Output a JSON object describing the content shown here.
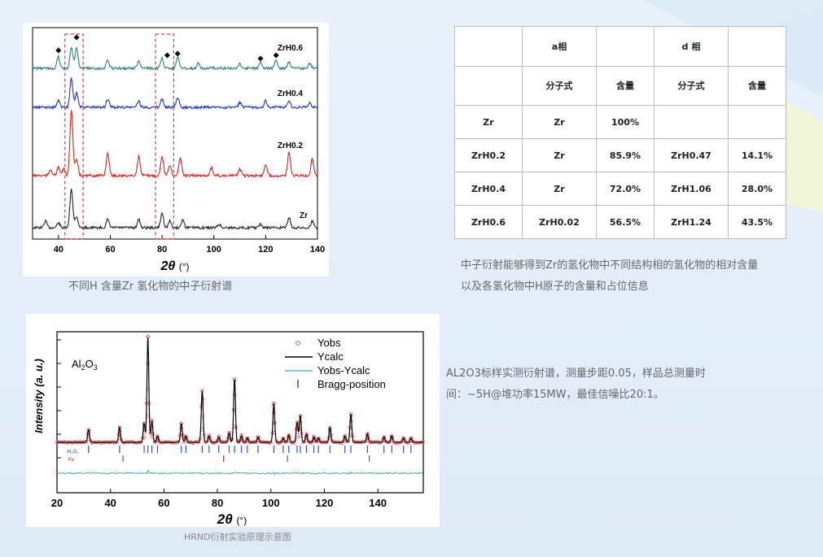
{
  "colors": {
    "zr": "#222222",
    "zrh02": "#d9231e",
    "zrh04": "#1f36c8",
    "zrh06": "#2f7d7a",
    "box": "#e03b3b",
    "obs": "#e06060",
    "calc": "#000000",
    "diff": "#3aa7a3",
    "bragg_al": "#1a3fd6",
    "bragg_fe": "#d12020"
  },
  "chart1": {
    "xlabel_main": "2θ",
    "xlabel_unit": "(°)",
    "xticks": [
      "40",
      "60",
      "80",
      "100",
      "120",
      "140"
    ],
    "xlim": [
      30,
      140
    ],
    "series_labels": [
      "ZrH0.6",
      "ZrH0.4",
      "ZrH0.2",
      "Zr"
    ],
    "caption": "不同H 含量Zr 氢化物的中子衍射谱"
  },
  "table": {
    "header1": [
      "",
      "a相",
      "",
      "d 相",
      ""
    ],
    "header2": [
      "",
      "分子式",
      "含量",
      "分子式",
      "含量"
    ],
    "rows": [
      [
        "Zr",
        "Zr",
        "100%",
        "",
        ""
      ],
      [
        "ZrH0.2",
        "Zr",
        "85.9%",
        "ZrH0.47",
        "14.1%"
      ],
      [
        "ZrH0.4",
        "Zr",
        "72.0%",
        "ZrH1.06",
        "28.0%"
      ],
      [
        "ZrH0.6",
        "ZrH0.02",
        "56.5%",
        "ZrH1.24",
        "43.5%"
      ]
    ],
    "caption_line1": "中子衍射能够得到Zr的氢化物中不同结构相的氢化物的相对含量",
    "caption_line2": "以及各氢化物中H原子的含量和占位信息"
  },
  "chart2": {
    "ylabel": "Intensity (a. u.)",
    "xlabel_main": "2θ",
    "xlabel_unit": "(°)",
    "xticks": [
      "20",
      "40",
      "60",
      "80",
      "100",
      "120",
      "140"
    ],
    "xlim": [
      20,
      157
    ],
    "material": "Al2O3",
    "legend": [
      "Yobs",
      "Ycalc",
      "Yobs-Ycalc",
      "Bragg-position"
    ],
    "phase_labels": [
      "Al2O3",
      "Fe"
    ],
    "caption": "HRND衍射实验原理示意图",
    "peaks": [
      31.8,
      43.4,
      52.6,
      54.0,
      55.5,
      57.6,
      66.5,
      68.2,
      74.3,
      76.9,
      80.5,
      84.4,
      86.4,
      89.0,
      91.2,
      95.2,
      101.1,
      104.6,
      106.7,
      109.8,
      111.0,
      113.3,
      116.1,
      117.8,
      122.1,
      127.7,
      129.9,
      136.1,
      142.3,
      145.2,
      149.6,
      152.4
    ],
    "intensities": [
      0.12,
      0.14,
      0.18,
      1.0,
      0.2,
      0.06,
      0.18,
      0.06,
      0.49,
      0.06,
      0.05,
      0.09,
      0.6,
      0.06,
      0.04,
      0.05,
      0.37,
      0.04,
      0.07,
      0.19,
      0.25,
      0.08,
      0.05,
      0.04,
      0.14,
      0.06,
      0.27,
      0.08,
      0.05,
      0.06,
      0.04,
      0.04
    ],
    "fe_peaks": [
      82.3,
      106.2,
      136.8,
      44.7
    ]
  },
  "caption_right_line1": "AL2O3标样实测衍射谱，测量步距0.05，样品总测量时",
  "caption_right_line2": "间：~5H@堆功率15MW，最佳信噪比20:1。"
}
